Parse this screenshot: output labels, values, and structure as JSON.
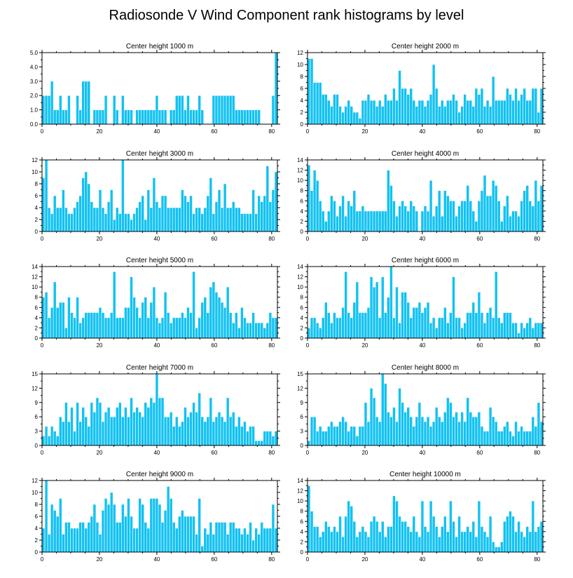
{
  "figure": {
    "title": "Radiosonde V Wind Component rank histograms by level",
    "bar_color": "#12c2f2"
  },
  "chart_data": [
    {
      "type": "bar",
      "title": "Center height 1000 m",
      "xlim": [
        0,
        82
      ],
      "ylim": [
        0,
        5
      ],
      "xticks": [
        0,
        20,
        40,
        60,
        80
      ],
      "yticks": [
        0,
        1,
        2,
        3,
        4,
        5
      ],
      "ytick_labels": [
        "0.0",
        "1.0",
        "2.0",
        "3.0",
        "4.0",
        "5.0"
      ],
      "values": [
        2,
        2,
        2,
        3,
        1,
        1,
        2,
        1,
        1,
        2,
        0,
        0,
        2,
        1,
        3,
        3,
        3,
        0,
        1,
        1,
        1,
        1,
        2,
        0,
        0,
        2,
        1,
        0,
        2,
        1,
        1,
        1,
        0,
        1,
        1,
        1,
        1,
        1,
        1,
        1,
        2,
        1,
        1,
        1,
        0,
        1,
        1,
        2,
        2,
        2,
        1,
        2,
        1,
        1,
        1,
        2,
        1,
        0,
        0,
        0,
        2,
        2,
        2,
        2,
        2,
        2,
        2,
        2,
        1,
        1,
        1,
        1,
        1,
        1,
        1,
        1,
        1,
        0,
        0,
        0,
        0,
        2,
        5
      ]
    },
    {
      "type": "bar",
      "title": "Center height 2000 m",
      "xlim": [
        0,
        82
      ],
      "ylim": [
        0,
        12
      ],
      "xticks": [
        0,
        20,
        40,
        60,
        80
      ],
      "yticks": [
        0,
        2,
        4,
        6,
        8,
        10,
        12
      ],
      "ytick_labels": [
        "0",
        "2",
        "4",
        "6",
        "8",
        "10",
        "12"
      ],
      "values": [
        11,
        11,
        7,
        7,
        7,
        5,
        5,
        4,
        3,
        5,
        5,
        3,
        2,
        3,
        4,
        3,
        2,
        2,
        1,
        4,
        4,
        5,
        4,
        4,
        3,
        4,
        3,
        5,
        4,
        4,
        6,
        4,
        9,
        6,
        6,
        5,
        6,
        4,
        3,
        4,
        4,
        3,
        4,
        5,
        10,
        6,
        3,
        4,
        3,
        4,
        4,
        5,
        4,
        2,
        3,
        5,
        4,
        4,
        3,
        6,
        5,
        6,
        3,
        4,
        3,
        8,
        4,
        4,
        4,
        4,
        6,
        5,
        4,
        6,
        4,
        5,
        6,
        4,
        4,
        6,
        6,
        2,
        6
      ]
    },
    {
      "type": "bar",
      "title": "Center height 3000 m",
      "xlim": [
        0,
        82
      ],
      "ylim": [
        0,
        12
      ],
      "xticks": [
        0,
        20,
        40,
        60,
        80
      ],
      "yticks": [
        0,
        2,
        4,
        6,
        8,
        10,
        12
      ],
      "ytick_labels": [
        "0",
        "2",
        "4",
        "6",
        "8",
        "10",
        "12"
      ],
      "values": [
        9,
        12,
        4,
        3,
        6,
        4,
        4,
        7,
        4,
        3,
        3,
        4,
        5,
        6,
        9,
        10,
        8,
        5,
        4,
        4,
        7,
        4,
        3,
        5,
        7,
        2,
        4,
        3,
        12,
        3,
        3,
        2,
        3,
        4,
        5,
        6,
        2,
        7,
        4,
        9,
        5,
        4,
        6,
        6,
        4,
        4,
        4,
        4,
        4,
        7,
        6,
        5,
        6,
        3,
        4,
        4,
        3,
        4,
        6,
        9,
        3,
        5,
        7,
        4,
        8,
        4,
        4,
        5,
        4,
        4,
        3,
        3,
        3,
        3,
        7,
        3,
        6,
        5,
        6,
        11,
        5,
        7,
        10
      ]
    },
    {
      "type": "bar",
      "title": "Center height 4000 m",
      "xlim": [
        0,
        82
      ],
      "ylim": [
        0,
        14
      ],
      "xticks": [
        0,
        20,
        40,
        60,
        80
      ],
      "yticks": [
        0,
        2,
        4,
        6,
        8,
        10,
        12,
        14
      ],
      "ytick_labels": [
        "0",
        "2",
        "4",
        "6",
        "8",
        "10",
        "12",
        "14"
      ],
      "values": [
        13,
        8,
        12,
        10,
        6,
        4,
        2,
        4,
        7,
        6,
        3,
        5,
        7,
        3,
        6,
        5,
        8,
        4,
        4,
        5,
        4,
        4,
        4,
        4,
        4,
        4,
        4,
        4,
        12,
        9,
        6,
        3,
        5,
        6,
        5,
        4,
        6,
        5,
        4,
        0,
        4,
        5,
        4,
        10,
        3,
        5,
        8,
        3,
        8,
        7,
        6,
        6,
        3,
        5,
        6,
        6,
        9,
        6,
        4,
        2,
        6,
        8,
        11,
        7,
        7,
        10,
        9,
        6,
        2,
        5,
        7,
        3,
        4,
        4,
        3,
        6,
        8,
        9,
        6,
        5,
        10,
        6,
        9
      ]
    },
    {
      "type": "bar",
      "title": "Center height 5000 m",
      "xlim": [
        0,
        82
      ],
      "ylim": [
        0,
        14
      ],
      "xticks": [
        0,
        20,
        40,
        60,
        80
      ],
      "yticks": [
        0,
        2,
        4,
        6,
        8,
        10,
        12,
        14
      ],
      "ytick_labels": [
        "0",
        "2",
        "4",
        "6",
        "8",
        "10",
        "12",
        "14"
      ],
      "values": [
        8,
        9,
        4,
        6,
        11,
        6,
        7,
        7,
        2,
        8,
        5,
        4,
        8,
        3,
        4,
        5,
        5,
        5,
        5,
        5,
        6,
        5,
        4,
        4,
        5,
        13,
        4,
        4,
        4,
        6,
        6,
        12,
        8,
        6,
        4,
        7,
        8,
        4,
        7,
        10,
        4,
        3,
        4,
        9,
        5,
        3,
        4,
        4,
        4,
        5,
        4,
        6,
        5,
        13,
        2,
        4,
        7,
        8,
        5,
        10,
        11,
        9,
        8,
        7,
        6,
        10,
        5,
        3,
        5,
        2,
        6,
        4,
        3,
        3,
        5,
        3,
        3,
        3,
        2,
        3,
        5,
        4,
        4
      ]
    },
    {
      "type": "bar",
      "title": "Center height 6000 m",
      "xlim": [
        0,
        82
      ],
      "ylim": [
        0,
        14
      ],
      "xticks": [
        0,
        20,
        40,
        60,
        80
      ],
      "yticks": [
        0,
        2,
        4,
        6,
        8,
        10,
        12,
        14
      ],
      "ytick_labels": [
        "0",
        "2",
        "4",
        "6",
        "8",
        "10",
        "12",
        "14"
      ],
      "values": [
        2,
        4,
        4,
        3,
        2,
        4,
        7,
        5,
        3,
        5,
        4,
        4,
        6,
        13,
        5,
        4,
        7,
        11,
        5,
        5,
        5,
        6,
        12,
        10,
        11,
        4,
        12,
        5,
        8,
        14,
        4,
        10,
        3,
        9,
        9,
        7,
        4,
        6,
        6,
        7,
        5,
        6,
        7,
        3,
        4,
        2,
        4,
        4,
        6,
        3,
        5,
        12,
        4,
        4,
        2,
        3,
        5,
        5,
        7,
        5,
        9,
        5,
        3,
        5,
        6,
        4,
        13,
        4,
        3,
        5,
        5,
        5,
        3,
        3,
        1,
        3,
        2,
        3,
        4,
        2,
        3,
        3,
        3
      ]
    },
    {
      "type": "bar",
      "title": "Center height 7000 m",
      "xlim": [
        0,
        82
      ],
      "ylim": [
        0,
        15
      ],
      "xticks": [
        0,
        20,
        40,
        60,
        80
      ],
      "yticks": [
        0,
        3,
        6,
        9,
        12,
        15
      ],
      "ytick_labels": [
        "0",
        "3",
        "6",
        "9",
        "12",
        "15"
      ],
      "values": [
        2,
        4,
        2,
        4,
        3,
        2,
        6,
        5,
        9,
        5,
        8,
        3,
        9,
        5,
        8,
        6,
        4,
        9,
        7,
        10,
        9,
        5,
        7,
        8,
        6,
        6,
        8,
        9,
        6,
        8,
        6,
        10,
        7,
        8,
        7,
        6,
        9,
        8,
        10,
        9,
        15,
        10,
        10,
        6,
        6,
        7,
        4,
        6,
        4,
        5,
        8,
        6,
        7,
        9,
        7,
        11,
        6,
        5,
        6,
        10,
        5,
        6,
        7,
        6,
        5,
        10,
        6,
        7,
        4,
        6,
        4,
        5,
        3,
        4,
        4,
        1,
        1,
        1,
        3,
        3,
        3,
        2,
        3
      ]
    },
    {
      "type": "bar",
      "title": "Center height 8000 m",
      "xlim": [
        0,
        82
      ],
      "ylim": [
        0,
        15
      ],
      "xticks": [
        0,
        20,
        40,
        60,
        80
      ],
      "yticks": [
        0,
        3,
        6,
        9,
        12,
        15
      ],
      "ytick_labels": [
        "0",
        "3",
        "6",
        "9",
        "12",
        "15"
      ],
      "values": [
        1,
        6,
        6,
        3,
        4,
        3,
        3,
        4,
        5,
        4,
        4,
        5,
        6,
        5,
        3,
        4,
        4,
        2,
        4,
        4,
        9,
        5,
        12,
        10,
        6,
        5,
        15,
        13,
        7,
        6,
        8,
        5,
        12,
        9,
        7,
        8,
        6,
        4,
        6,
        9,
        6,
        5,
        6,
        4,
        5,
        8,
        6,
        5,
        7,
        10,
        9,
        6,
        7,
        5,
        7,
        5,
        10,
        7,
        6,
        6,
        7,
        4,
        3,
        3,
        8,
        6,
        5,
        3,
        3,
        4,
        5,
        3,
        2,
        5,
        3,
        4,
        3,
        3,
        3,
        6,
        4,
        9,
        5
      ]
    },
    {
      "type": "bar",
      "title": "Center height 9000 m",
      "xlim": [
        0,
        82
      ],
      "ylim": [
        0,
        12
      ],
      "xticks": [
        0,
        20,
        40,
        60,
        80
      ],
      "yticks": [
        0,
        2,
        4,
        6,
        8,
        10,
        12
      ],
      "ytick_labels": [
        "0",
        "2",
        "4",
        "6",
        "8",
        "10",
        "12"
      ],
      "values": [
        4,
        12,
        3,
        8,
        7,
        6,
        9,
        3,
        5,
        5,
        4,
        4,
        4,
        5,
        5,
        4,
        5,
        6,
        8,
        5,
        3,
        7,
        9,
        8,
        10,
        8,
        5,
        5,
        8,
        6,
        9,
        6,
        4,
        4,
        9,
        8,
        5,
        4,
        9,
        9,
        9,
        8,
        5,
        7,
        11,
        9,
        5,
        4,
        6,
        7,
        6,
        6,
        6,
        6,
        3,
        9,
        1,
        4,
        3,
        5,
        3,
        5,
        5,
        5,
        5,
        3,
        5,
        5,
        4,
        4,
        3,
        4,
        3,
        5,
        2,
        4,
        3,
        5,
        4,
        4,
        4,
        8,
        4
      ]
    },
    {
      "type": "bar",
      "title": "Center height 10000 m",
      "xlim": [
        0,
        82
      ],
      "ylim": [
        0,
        14
      ],
      "xticks": [
        0,
        20,
        40,
        60,
        80
      ],
      "yticks": [
        0,
        2,
        4,
        6,
        8,
        10,
        12,
        14
      ],
      "ytick_labels": [
        "0",
        "2",
        "4",
        "6",
        "8",
        "10",
        "12",
        "14"
      ],
      "values": [
        13,
        8,
        5,
        5,
        3,
        4,
        6,
        5,
        4,
        5,
        4,
        7,
        3,
        7,
        10,
        9,
        6,
        3,
        4,
        5,
        4,
        3,
        6,
        7,
        6,
        4,
        6,
        3,
        5,
        5,
        11,
        10,
        7,
        6,
        6,
        5,
        4,
        7,
        4,
        3,
        10,
        5,
        4,
        10,
        7,
        5,
        3,
        5,
        7,
        4,
        10,
        6,
        3,
        7,
        4,
        4,
        5,
        4,
        6,
        3,
        10,
        5,
        4,
        3,
        7,
        2,
        1,
        1,
        2,
        6,
        7,
        8,
        7,
        4,
        6,
        4,
        3,
        5,
        4,
        10,
        4,
        5,
        6
      ]
    }
  ]
}
